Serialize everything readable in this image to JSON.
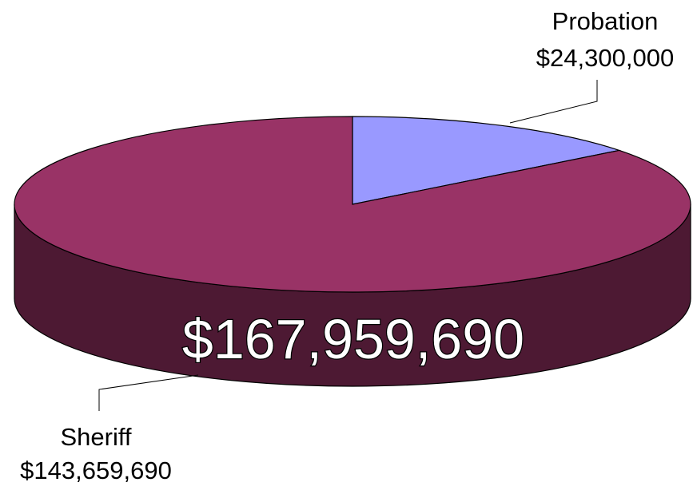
{
  "chart_data": {
    "type": "pie",
    "style": "3d",
    "slices": [
      {
        "name": "Probation",
        "value": 24300000,
        "value_label": "$24,300,000",
        "color": "#9999ff",
        "side_color": "#4d4d80"
      },
      {
        "name": "Sheriff",
        "value": 143659690,
        "value_label": "$143,659,690",
        "color": "#993366",
        "side_color": "#4d1933"
      }
    ],
    "total_label": "$167,959,690"
  }
}
